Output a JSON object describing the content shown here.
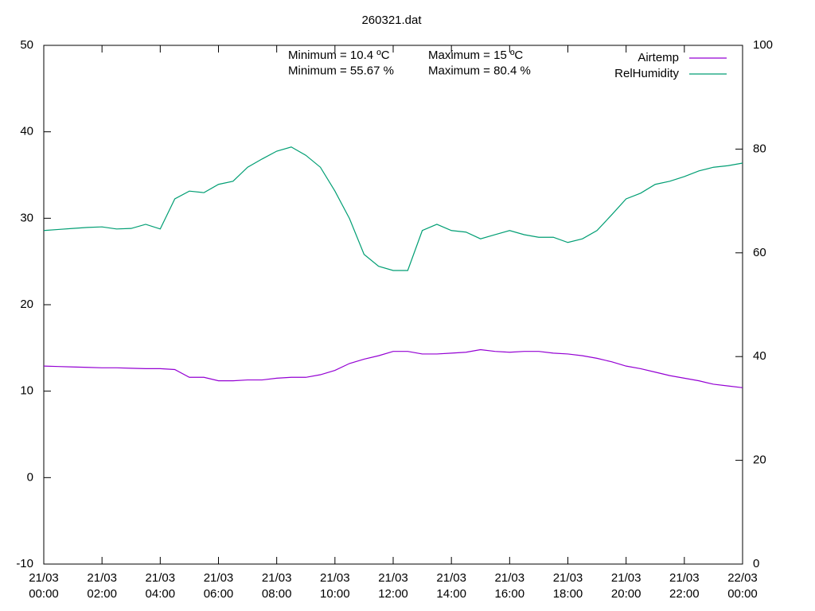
{
  "chart_data": {
    "type": "line",
    "title": "260321.dat",
    "annotations": [
      "Minimum = 10.4 ºC",
      "Maximum = 15 ºC",
      "Minimum = 55.67 %",
      "Maximum = 80.4 %"
    ],
    "legend": "top right",
    "grid": false,
    "x": [
      0,
      0.5,
      1,
      1.5,
      2,
      2.5,
      3,
      3.5,
      4,
      4.5,
      5,
      5.5,
      6,
      6.5,
      7,
      7.5,
      8,
      8.5,
      9,
      9.5,
      10,
      10.5,
      11,
      11.5,
      12,
      12.5,
      13,
      13.5,
      14,
      14.5,
      15,
      15.5,
      16,
      16.5,
      17,
      17.5,
      18,
      18.5,
      19,
      19.5,
      20,
      20.5,
      21,
      21.5,
      22,
      22.5,
      23,
      23.5,
      24
    ],
    "xlim": [
      0,
      24
    ],
    "xticks": [
      {
        "value": 0,
        "label": [
          "21/03",
          "00:00"
        ]
      },
      {
        "value": 2,
        "label": [
          "21/03",
          "02:00"
        ]
      },
      {
        "value": 4,
        "label": [
          "21/03",
          "04:00"
        ]
      },
      {
        "value": 6,
        "label": [
          "21/03",
          "06:00"
        ]
      },
      {
        "value": 8,
        "label": [
          "21/03",
          "08:00"
        ]
      },
      {
        "value": 10,
        "label": [
          "21/03",
          "10:00"
        ]
      },
      {
        "value": 12,
        "label": [
          "21/03",
          "12:00"
        ]
      },
      {
        "value": 14,
        "label": [
          "21/03",
          "14:00"
        ]
      },
      {
        "value": 16,
        "label": [
          "21/03",
          "16:00"
        ]
      },
      {
        "value": 18,
        "label": [
          "21/03",
          "18:00"
        ]
      },
      {
        "value": 20,
        "label": [
          "21/03",
          "20:00"
        ]
      },
      {
        "value": 22,
        "label": [
          "21/03",
          "22:00"
        ]
      },
      {
        "value": 24,
        "label": [
          "22/03",
          "00:00"
        ]
      }
    ],
    "ylim": [
      -10,
      50
    ],
    "yticks": [
      -10,
      0,
      10,
      20,
      30,
      40,
      50
    ],
    "y2lim": [
      0,
      100
    ],
    "y2ticks": [
      0,
      20,
      40,
      60,
      80,
      100
    ],
    "series": [
      {
        "name": "Airtemp",
        "color": "#9400d3",
        "axis": "y",
        "values": [
          12.9,
          12.85,
          12.8,
          12.75,
          12.7,
          12.7,
          12.65,
          12.6,
          12.6,
          12.5,
          11.6,
          11.6,
          11.2,
          11.2,
          11.3,
          11.3,
          11.5,
          11.6,
          11.6,
          11.9,
          12.4,
          13.2,
          13.7,
          14.1,
          14.6,
          14.6,
          14.3,
          14.3,
          14.4,
          14.5,
          14.8,
          14.6,
          14.5,
          14.6,
          14.6,
          14.4,
          14.3,
          14.1,
          13.8,
          13.4,
          12.9,
          12.6,
          12.2,
          11.8,
          11.5,
          11.2,
          10.8,
          10.6,
          10.4
        ]
      },
      {
        "name": "RelHumidity",
        "color": "#009e73",
        "axis": "y2",
        "values": [
          64.3,
          64.5,
          64.7,
          64.9,
          65.0,
          64.6,
          64.7,
          65.5,
          64.6,
          70.4,
          71.9,
          71.6,
          73.2,
          73.8,
          76.5,
          78.1,
          79.6,
          80.4,
          78.8,
          76.5,
          71.9,
          66.6,
          59.7,
          57.4,
          56.6,
          56.6,
          64.3,
          65.5,
          64.3,
          64.0,
          62.7,
          63.5,
          64.3,
          63.5,
          63.0,
          63.0,
          62.0,
          62.7,
          64.3,
          67.3,
          70.4,
          71.5,
          73.2,
          73.8,
          74.7,
          75.8,
          76.5,
          76.8,
          77.3
        ]
      }
    ]
  }
}
